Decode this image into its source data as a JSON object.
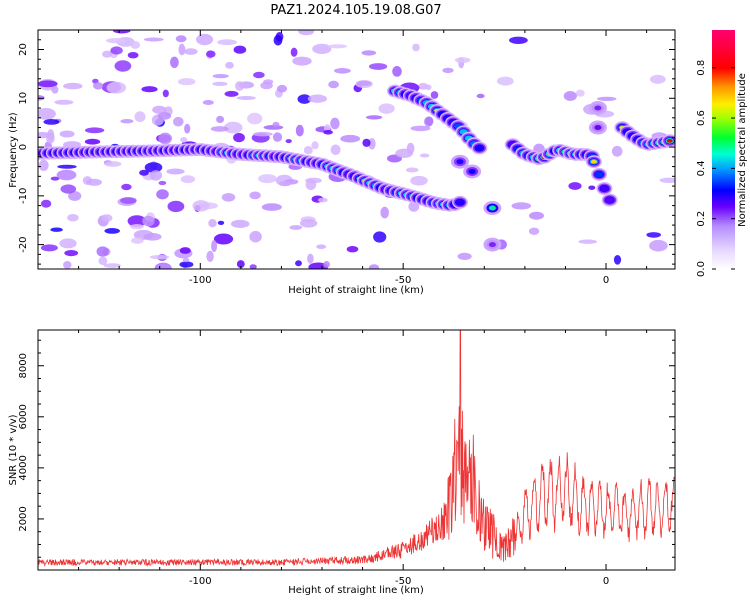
{
  "figure": {
    "title": "PAZ1.2024.105.19.08.G07"
  },
  "chart_data": [
    {
      "type": "heatmap",
      "xlabel": "Height of straight line (km)",
      "ylabel": "Frequency (Hz)",
      "xlim": [
        -140,
        17
      ],
      "ylim": [
        -25,
        24
      ],
      "x_ticks": [
        -100,
        -50,
        0
      ],
      "y_ticks": [
        -20,
        -10,
        0,
        10,
        20
      ],
      "colorbar": {
        "label": "Normalized spectral amplitude",
        "ticks": [
          0.0,
          0.2,
          0.4,
          0.6,
          0.8
        ],
        "range": [
          0.0,
          0.95
        ],
        "colormap": [
          "#f2e6ff",
          "#c9a0ff",
          "#6a00ff",
          "#0000ff",
          "#00d5ff",
          "#00ff40",
          "#c8ff00",
          "#ffd400",
          "#ff0000",
          "#ff0090"
        ]
      },
      "ridges": [
        {
          "x": [
            -140,
            -125,
            -112,
            -100,
            -90,
            -80,
            -70,
            -62,
            -55,
            -48,
            -42,
            -38,
            -35
          ],
          "y": [
            -1.3,
            -1.0,
            -0.8,
            -0.5,
            -1.5,
            -2.0,
            -3.5,
            -6.0,
            -8.5,
            -10.0,
            -11.5,
            -12.0,
            -11.0
          ]
        },
        {
          "x": [
            -52,
            -48,
            -44,
            -40,
            -36,
            -33,
            -30
          ],
          "y": [
            11.5,
            10.5,
            9.0,
            6.5,
            4.0,
            1.0,
            -1.0
          ]
        },
        {
          "x": [
            -23,
            -20,
            -16,
            -12,
            -8,
            -5,
            -3
          ],
          "y": [
            0.5,
            -1.5,
            -2.5,
            -0.5,
            -1.5,
            -1.5,
            -2.0
          ]
        },
        {
          "x": [
            -3,
            -1,
            0,
            1
          ],
          "y": [
            -3.0,
            -7.0,
            -9.5,
            -11.0
          ]
        },
        {
          "x": [
            4,
            7,
            10,
            14,
            17
          ],
          "y": [
            4.0,
            2.0,
            0.5,
            1.0,
            1.5
          ]
        }
      ]
    },
    {
      "type": "line",
      "xlabel": "Height of straight line (km)",
      "ylabel": "SNR (10 * v/v)",
      "xlim": [
        -140,
        17
      ],
      "ylim": [
        0,
        9400
      ],
      "x_ticks": [
        -100,
        -50,
        0
      ],
      "y_ticks": [
        2000,
        4000,
        6000,
        8000
      ],
      "series": [
        {
          "color": "#ee3333",
          "envelope": {
            "x": [
              -140,
              -80,
              -60,
              -50,
              -45,
              -40,
              -38,
              -36.5,
              -35,
              -33,
              -31,
              -29,
              -27,
              -25,
              -22,
              -20,
              -15,
              -10,
              -5,
              0,
              5,
              10,
              15,
              17
            ],
            "y": [
              300,
              300,
              400,
              800,
              1200,
              2000,
              3500,
              6500,
              4500,
              4800,
              2500,
              2000,
              1500,
              1000,
              1800,
              2800,
              3800,
              3900,
              3100,
              3000,
              2700,
              3000,
              3200,
              3300
            ]
          }
        }
      ]
    }
  ]
}
